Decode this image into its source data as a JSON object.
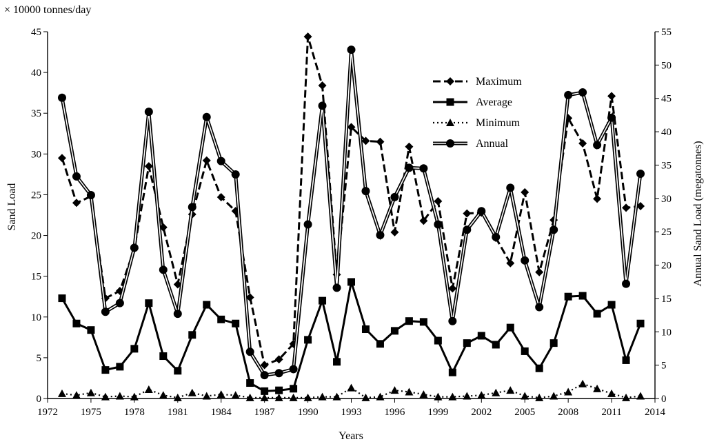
{
  "chart_data": {
    "type": "line",
    "unit_note": "× 10000 tonnes/day",
    "xlabel": "Years",
    "ylabel": "Sand Load",
    "y2label": "Annual Sand Load (megatonnes)",
    "xlim": [
      1972,
      2014
    ],
    "ylim": [
      0,
      45
    ],
    "y2lim": [
      0,
      55
    ],
    "x_ticks": [
      "1972",
      "1975",
      "1978",
      "1981",
      "1984",
      "1987",
      "1990",
      "1993",
      "1996",
      "1999",
      "2002",
      "2005",
      "2008",
      "2011",
      "2014"
    ],
    "y_ticks": [
      "0",
      "5",
      "10",
      "15",
      "20",
      "25",
      "30",
      "35",
      "40",
      "45"
    ],
    "y2_ticks": [
      "0",
      "5",
      "10",
      "15",
      "20",
      "25",
      "30",
      "35",
      "40",
      "45",
      "50",
      "55"
    ],
    "legend_position": "top-right",
    "grid": false,
    "x": [
      1973,
      1974,
      1975,
      1976,
      1977,
      1978,
      1979,
      1980,
      1981,
      1982,
      1983,
      1984,
      1985,
      1986,
      1987,
      1988,
      1989,
      1990,
      1991,
      1992,
      1993,
      1994,
      1995,
      1996,
      1997,
      1998,
      1999,
      2000,
      2001,
      2002,
      2003,
      2004,
      2005,
      2006,
      2007,
      2008,
      2009,
      2010,
      2011,
      2012,
      2013
    ],
    "series": [
      {
        "name": "Maximum",
        "axis": "left",
        "values": [
          29.5,
          24.0,
          24.8,
          12.3,
          13.2,
          18.4,
          28.5,
          21.0,
          14.0,
          22.6,
          29.2,
          24.7,
          23.0,
          12.4,
          4.1,
          4.8,
          6.7,
          44.4,
          38.4,
          15.2,
          33.3,
          31.6,
          31.5,
          20.4,
          30.9,
          21.8,
          24.2,
          13.5,
          22.7,
          22.8,
          19.7,
          16.6,
          25.3,
          15.5,
          21.9,
          34.4,
          31.3,
          24.5,
          37.1,
          23.4,
          23.6
        ]
      },
      {
        "name": "Average",
        "axis": "left",
        "values": [
          12.3,
          9.2,
          8.4,
          3.5,
          3.9,
          6.1,
          11.7,
          5.2,
          3.4,
          7.8,
          11.5,
          9.7,
          9.2,
          1.9,
          0.9,
          1.0,
          1.2,
          7.2,
          12.0,
          4.5,
          14.3,
          8.5,
          6.7,
          8.3,
          9.5,
          9.4,
          7.1,
          3.2,
          6.8,
          7.7,
          6.6,
          8.7,
          5.8,
          3.7,
          6.8,
          12.5,
          12.6,
          10.4,
          11.5,
          4.7,
          9.2
        ]
      },
      {
        "name": "Minimum",
        "axis": "left",
        "values": [
          0.6,
          0.4,
          0.7,
          0.2,
          0.3,
          0.2,
          1.1,
          0.4,
          0.1,
          0.7,
          0.3,
          0.5,
          0.4,
          0.1,
          0.1,
          0.1,
          0.1,
          0.1,
          0.2,
          0.2,
          1.3,
          0.1,
          0.2,
          1.0,
          0.8,
          0.5,
          0.2,
          0.2,
          0.3,
          0.4,
          0.7,
          1.0,
          0.3,
          0.1,
          0.3,
          0.8,
          1.8,
          1.2,
          0.6,
          0.1,
          0.3
        ]
      },
      {
        "name": "Annual",
        "axis": "right",
        "values": [
          45.1,
          33.3,
          30.5,
          13.0,
          14.3,
          22.6,
          43.0,
          19.3,
          12.7,
          28.7,
          42.2,
          35.6,
          33.6,
          7.0,
          3.5,
          3.8,
          4.4,
          26.1,
          43.9,
          16.6,
          52.3,
          31.1,
          24.5,
          30.2,
          34.6,
          34.5,
          26.1,
          11.6,
          25.3,
          28.1,
          24.2,
          31.6,
          20.7,
          13.7,
          25.3,
          45.5,
          45.9,
          38.0,
          42.1,
          17.2,
          33.7
        ]
      }
    ]
  }
}
